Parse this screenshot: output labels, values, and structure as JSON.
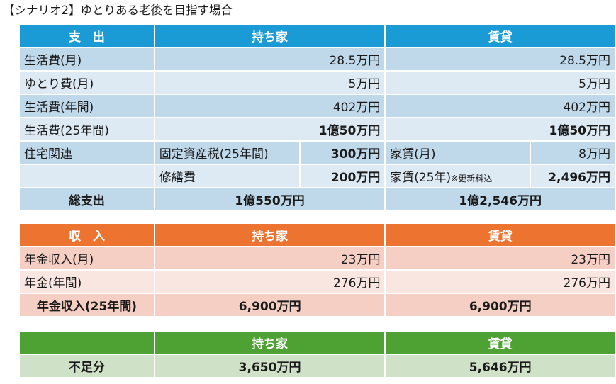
{
  "title": "【シナリオ2】ゆとりある老後を目指す場合",
  "expense": {
    "header": {
      "label": "支　出",
      "own": "持ち家",
      "rent": "賃貸"
    },
    "rows": [
      {
        "label": "生活費(月)",
        "own": "28.5万円",
        "rent": "28.5万円"
      },
      {
        "label": "ゆとり費(月)",
        "own": "5万円",
        "rent": "5万円"
      },
      {
        "label": "生活費(年間)",
        "own": "402万円",
        "rent": "402万円"
      },
      {
        "label": "生活費(25年間)",
        "own": "1億50万円",
        "rent": "1億50万円"
      }
    ],
    "housing": {
      "label": "住宅関連",
      "own_items": [
        {
          "name": "固定資産税(25年間)",
          "value": "300万円"
        },
        {
          "name": "修繕費",
          "value": "200万円"
        }
      ],
      "rent_items": [
        {
          "name": "家賃(月)",
          "note": "",
          "value": "8万円"
        },
        {
          "name": "家賃(25年)",
          "note": "※更新料込",
          "value": "2,496万円"
        }
      ]
    },
    "total": {
      "label": "総支出",
      "own": "1億550万円",
      "rent": "1億2,546万円"
    }
  },
  "income": {
    "header": {
      "label": "収　入",
      "own": "持ち家",
      "rent": "賃貸"
    },
    "rows": [
      {
        "label": "年金収入(月)",
        "own": "23万円",
        "rent": "23万円"
      },
      {
        "label": "年金(年間)",
        "own": "276万円",
        "rent": "276万円"
      }
    ],
    "total": {
      "label": "年金収入(25年間)",
      "own": "6,900万円",
      "rent": "6,900万円"
    }
  },
  "shortfall": {
    "header": {
      "own": "持ち家",
      "rent": "賃貸"
    },
    "row": {
      "label": "不足分",
      "own": "3,650万円",
      "rent": "5,646万円"
    }
  },
  "colors": {
    "expense_header": "#1b9bd6",
    "expense_dark": "#bfd8ea",
    "expense_light": "#dde9f3",
    "income_header": "#ec7430",
    "income_dark": "#f5cfc3",
    "income_light": "#fae6e0",
    "shortfall_header": "#4ea133",
    "shortfall_row": "#cfe1c7"
  }
}
